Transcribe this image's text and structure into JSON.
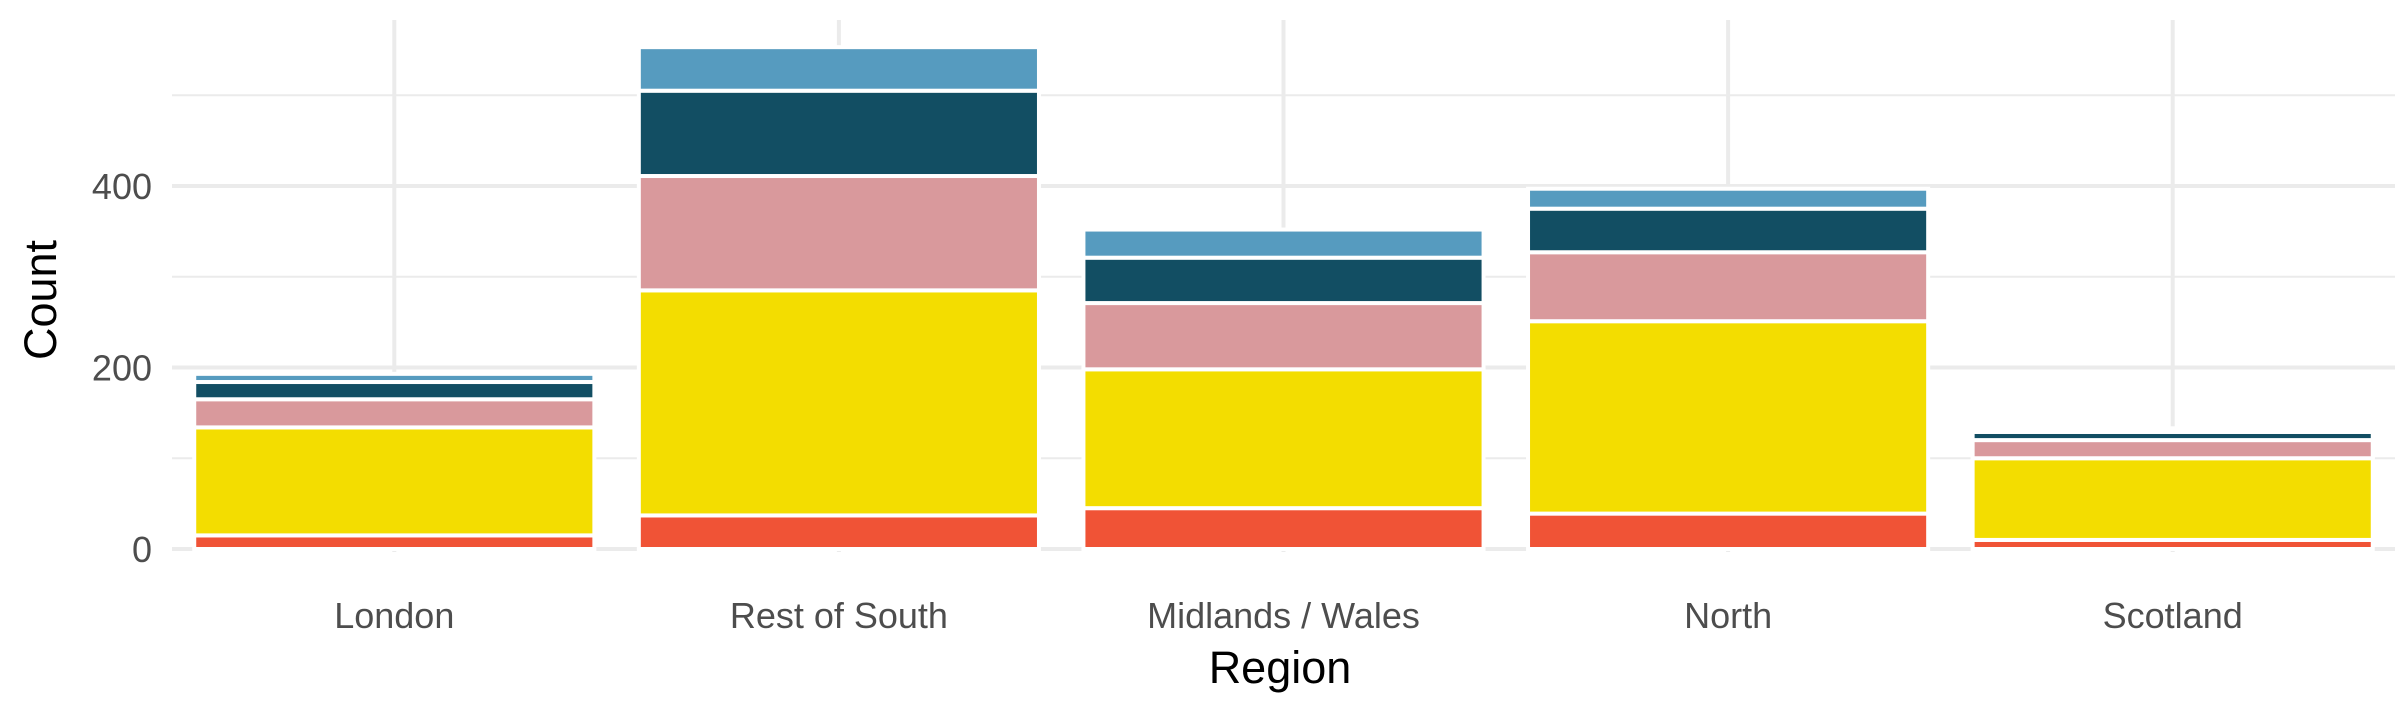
{
  "chart_data": {
    "type": "bar",
    "stacked": true,
    "title": "",
    "xlabel": "Region",
    "ylabel": "Count",
    "ylim": [
      0,
      550
    ],
    "y_ticks": [
      0,
      200,
      400
    ],
    "grid": true,
    "legend": "none",
    "categories": [
      "London",
      "Rest of South",
      "Midlands / Wales",
      "North",
      "Scotland"
    ],
    "series": [
      {
        "color": "#f05336",
        "values": [
          15,
          37,
          45,
          39,
          10
        ]
      },
      {
        "color": "#f3dd00",
        "values": [
          119,
          248,
          153,
          212,
          90
        ]
      },
      {
        "color": "#d9999c",
        "values": [
          31,
          126,
          73,
          76,
          20
        ]
      },
      {
        "color": "#124e63",
        "values": [
          19,
          94,
          50,
          48,
          9
        ]
      },
      {
        "color": "#569bbf",
        "values": [
          9,
          48,
          31,
          22,
          4
        ]
      }
    ]
  }
}
